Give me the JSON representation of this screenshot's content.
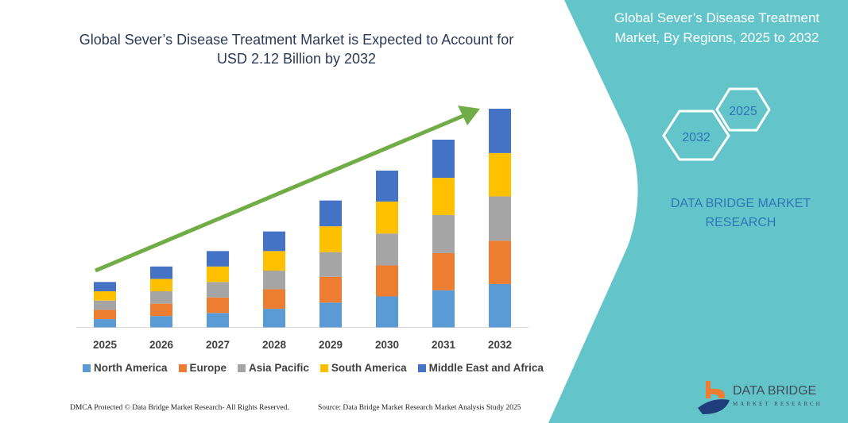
{
  "header": {
    "title": "Global Sever’s Disease Treatment Market is Expected to Account for USD 2.12 Billion by 2032"
  },
  "side_panel": {
    "title": "Global Sever’s Disease Treatment Market, By Regions, 2025 to 2032",
    "hex_start": "2025",
    "hex_end": "2032",
    "brand": "DATA BRIDGE MARKET RESEARCH",
    "panel_color": "#63c5c9"
  },
  "logo": {
    "name": "DATA BRIDGE",
    "tagline": "MARKET RESEARCH"
  },
  "footer": {
    "left": "DMCA Protected © Data Bridge Market Research- All Rights Reserved.",
    "right": "Source: Data Bridge Market Research Market Analysis Study 2025"
  },
  "chart_data": {
    "type": "bar",
    "stacked": true,
    "title": "Global Sever’s Disease Treatment Market is Expected to Account for USD 2.12 Billion by 2032",
    "categories": [
      "2025",
      "2026",
      "2027",
      "2028",
      "2029",
      "2030",
      "2031",
      "2032"
    ],
    "series": [
      {
        "name": "North America",
        "color": "#5b9bd5",
        "values": [
          0.08,
          0.11,
          0.14,
          0.18,
          0.24,
          0.3,
          0.36,
          0.42
        ]
      },
      {
        "name": "Europe",
        "color": "#ed7d31",
        "values": [
          0.09,
          0.12,
          0.15,
          0.19,
          0.25,
          0.3,
          0.36,
          0.42
        ]
      },
      {
        "name": "Asia Pacific",
        "color": "#a5a5a5",
        "values": [
          0.09,
          0.12,
          0.15,
          0.18,
          0.24,
          0.31,
          0.37,
          0.43
        ]
      },
      {
        "name": "South America",
        "color": "#ffc000",
        "values": [
          0.09,
          0.12,
          0.15,
          0.19,
          0.25,
          0.31,
          0.36,
          0.42
        ]
      },
      {
        "name": "Middle East and Africa",
        "color": "#4472c4",
        "values": [
          0.09,
          0.12,
          0.15,
          0.19,
          0.25,
          0.3,
          0.37,
          0.43
        ]
      }
    ],
    "ylim": [
      0,
      2.12
    ],
    "grid": false,
    "legend": "bottom",
    "trend_arrow_color": "#70ad47"
  }
}
